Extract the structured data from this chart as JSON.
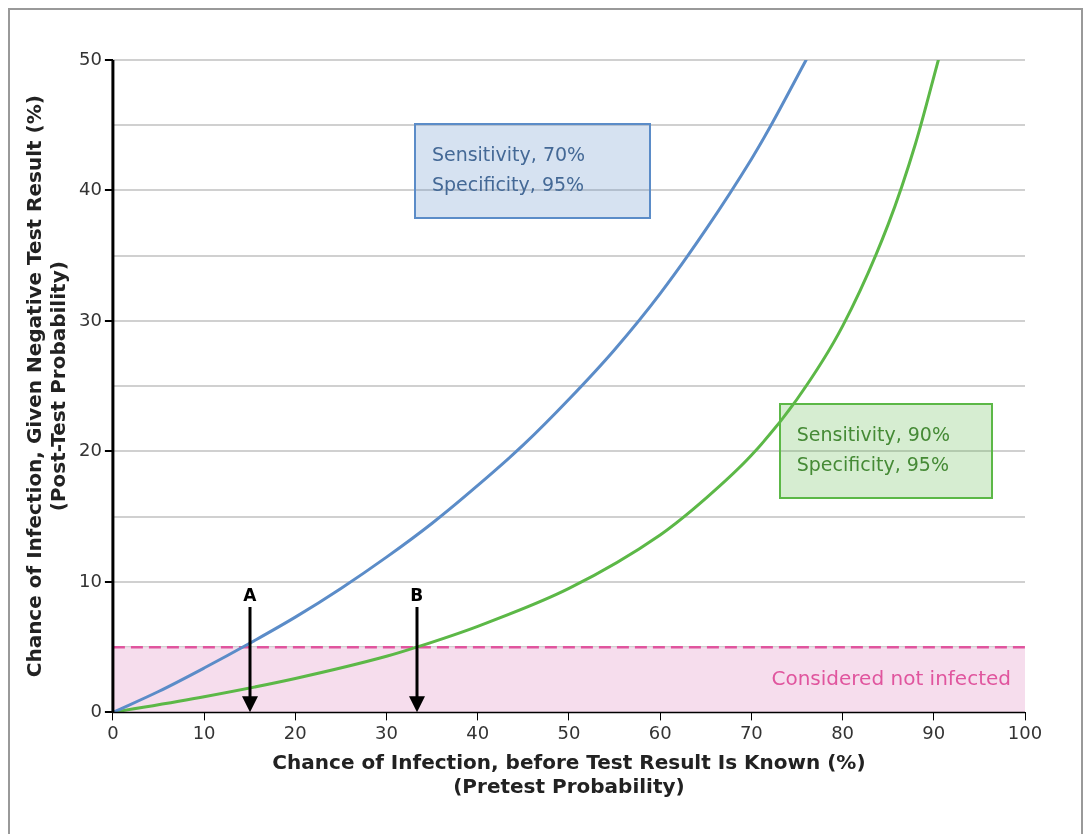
{
  "chart_data": {
    "type": "line",
    "xlabel": "Chance of Infection, before Test Result Is Known (%)\n(Pretest Probability)",
    "ylabel": "Chance of Infection, Given Negative Test Result (%)\n(Post-Test Probability)",
    "xlim": [
      0,
      100
    ],
    "xticks": [
      0,
      10,
      20,
      30,
      40,
      50,
      60,
      70,
      80,
      90,
      100
    ],
    "ylim": [
      0,
      50
    ],
    "yticks": [
      0,
      {
        "value": 5,
        "label": null
      },
      10,
      {
        "value": 15,
        "label": null
      },
      20,
      {
        "value": 25,
        "label": null
      },
      30,
      {
        "value": 35,
        "label": null
      },
      40,
      {
        "value": 45,
        "label": null
      },
      50
    ],
    "grid": "y",
    "legend": false,
    "marker": "none",
    "line_style": "solid",
    "series": [
      {
        "name": "Sensitivity, 70%\nSpecificity, 95%",
        "color": "#5b8cc8",
        "x": [
          0,
          5,
          10,
          15,
          20,
          25,
          30,
          35,
          40,
          45,
          50,
          55,
          60,
          65,
          70,
          72,
          76
        ],
        "values": [
          0,
          1.6,
          3.4,
          5.3,
          7.3,
          9.5,
          11.9,
          14.5,
          17.4,
          20.5,
          24,
          27.8,
          32.1,
          37,
          42.4,
          44.8,
          50
        ]
      },
      {
        "name": "Sensitivity, 90%\nSpecificity, 95%",
        "color": "#5cb847",
        "x": [
          0,
          10,
          20,
          30,
          33.3,
          40,
          50,
          60,
          65,
          70,
          75,
          80,
          85,
          88,
          90.5
        ],
        "values": [
          0,
          1.2,
          2.6,
          4.3,
          5,
          6.6,
          9.5,
          13.6,
          16.4,
          19.7,
          24,
          29.6,
          37.4,
          43.6,
          50
        ]
      }
    ],
    "ref_lines": [
      {
        "axis": "y",
        "value": 5,
        "color": "#e0559e",
        "line_style": "dashed"
      }
    ],
    "bands": [
      {
        "axis": "y",
        "from": 0,
        "to": 5,
        "label": "Considered not infected",
        "color": "#f6dded"
      }
    ],
    "annotations": [
      {
        "text": "A",
        "x": 15,
        "y": 5
      },
      {
        "text": "B",
        "x": 33.3,
        "y": 5
      }
    ]
  }
}
